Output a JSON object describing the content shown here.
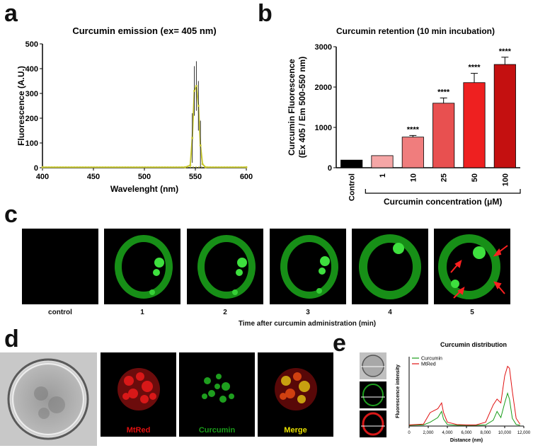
{
  "panel_letters": {
    "a": "a",
    "b": "b",
    "c": "c",
    "d": "d",
    "e": "e"
  },
  "colors": {
    "yellow_line": "#c8c832",
    "bar_control": "#000000",
    "bar_1": "#f5a6a6",
    "bar_10": "#f07d7d",
    "bar_25": "#e85050",
    "bar_50": "#ee2020",
    "bar_100": "#c41010",
    "curcumin_green": "#1a9c1a",
    "mtred_red": "#e01010",
    "merge_yellow": "#e8e000"
  },
  "chart_data": [
    {
      "id": "a",
      "type": "line",
      "title": "Curcumin emission (ex= 405 nm)",
      "xlabel": "Wavelenght (nm)",
      "ylabel": "Fluorescence (A.U.)",
      "xlim": [
        400,
        600
      ],
      "ylim": [
        0,
        500
      ],
      "xticks": [
        "400",
        "450",
        "500",
        "550",
        "600"
      ],
      "yticks": [
        "0",
        "100",
        "200",
        "300",
        "400",
        "500"
      ],
      "x": [
        400,
        540,
        545,
        547,
        549,
        551,
        553,
        555,
        557,
        560,
        600
      ],
      "y": [
        2,
        2,
        10,
        120,
        310,
        330,
        250,
        90,
        15,
        2,
        2
      ]
    },
    {
      "id": "b",
      "type": "bar",
      "title": "Curcumin retention (10 min incubation)",
      "ylabel_line1": "Curcumin Fluorescence",
      "ylabel_line2": "(Ex 405 / Em 500-550 nm)",
      "xlabel": "Curcumin concentration (μM)",
      "categories": [
        "Control",
        "1",
        "10",
        "25",
        "50",
        "100"
      ],
      "values": [
        190,
        300,
        760,
        1600,
        2110,
        2560
      ],
      "errors": [
        0,
        0,
        40,
        130,
        230,
        180
      ],
      "significance": [
        "",
        "",
        "****",
        "****",
        "****",
        "****"
      ],
      "ylim": [
        0,
        3000
      ],
      "yticks": [
        "0",
        "1000",
        "2000",
        "3000"
      ]
    },
    {
      "id": "e",
      "type": "line",
      "title": "Curcumin distribution",
      "xlabel": "Distance (nm)",
      "ylabel": "Fluorescence intensity",
      "xlim": [
        0,
        12000
      ],
      "xticks": [
        "0",
        "2,000",
        "4,000",
        "6,000",
        "8,000",
        "10,000",
        "12,000"
      ],
      "legend": [
        "Curcumin",
        "MtRed"
      ],
      "series": [
        {
          "name": "Curcumin",
          "x": [
            0,
            1500,
            2200,
            3000,
            3400,
            3600,
            4000,
            5000,
            6000,
            7000,
            8000,
            8800,
            9200,
            9600,
            10000,
            10300,
            10500,
            10800,
            11200,
            11600
          ],
          "y": [
            2,
            3,
            10,
            22,
            38,
            18,
            4,
            2,
            2,
            2,
            3,
            15,
            38,
            22,
            60,
            85,
            70,
            20,
            4,
            2
          ]
        },
        {
          "name": "MtRed",
          "x": [
            0,
            1500,
            2200,
            3000,
            3400,
            3600,
            4000,
            5000,
            6000,
            7000,
            8000,
            8800,
            9200,
            9600,
            10000,
            10300,
            10500,
            10800,
            11200,
            11600
          ],
          "y": [
            3,
            5,
            35,
            45,
            60,
            35,
            10,
            4,
            3,
            3,
            10,
            55,
            70,
            60,
            130,
            155,
            150,
            90,
            20,
            5
          ]
        }
      ]
    }
  ],
  "panel_c": {
    "captions": [
      "control",
      "1",
      "2",
      "3",
      "4",
      "5"
    ],
    "axis_label": "Time after curcumin administration (min)"
  },
  "panel_d": {
    "labels": {
      "mtred": "MtRed",
      "curcumin": "Curcumin",
      "merge": "Merge"
    }
  }
}
